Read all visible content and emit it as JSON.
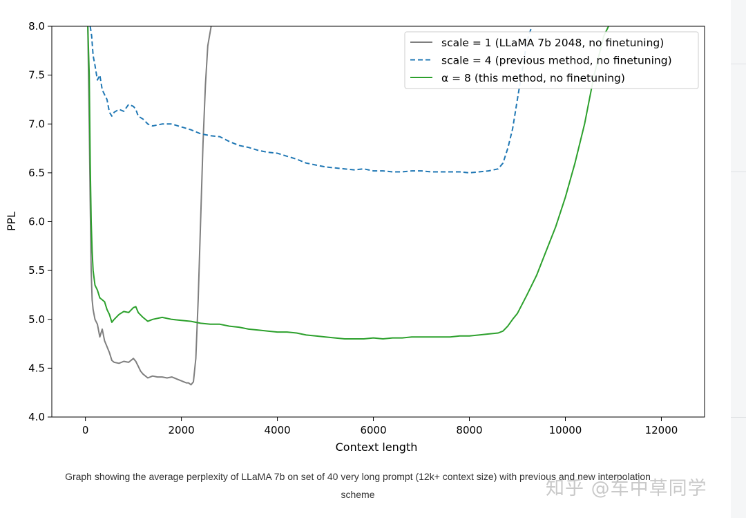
{
  "chart_data": {
    "type": "line",
    "title": "",
    "xlabel": "Context length",
    "ylabel": "PPL",
    "xlim": [
      -700,
      12900
    ],
    "ylim": [
      4.0,
      8.0
    ],
    "xticks": [
      0,
      2000,
      4000,
      6000,
      8000,
      10000,
      12000
    ],
    "yticks": [
      4.0,
      4.5,
      5.0,
      5.5,
      6.0,
      6.5,
      7.0,
      7.5,
      8.0
    ],
    "legend_position": "top-right",
    "series": [
      {
        "name": "scale = 1 (LLaMA 7b 2048, no finetuning)",
        "color": "#7f7f7f",
        "style": "solid",
        "x": [
          50,
          80,
          100,
          120,
          140,
          160,
          200,
          250,
          300,
          350,
          400,
          450,
          500,
          550,
          600,
          700,
          800,
          900,
          1000,
          1050,
          1100,
          1150,
          1200,
          1300,
          1400,
          1500,
          1600,
          1700,
          1800,
          1900,
          2000,
          2100,
          2150,
          2200,
          2250,
          2300,
          2350,
          2400,
          2450,
          2500,
          2550,
          2620
        ],
        "y": [
          8.0,
          7.0,
          6.2,
          5.5,
          5.2,
          5.1,
          5.0,
          4.95,
          4.82,
          4.9,
          4.78,
          4.72,
          4.66,
          4.58,
          4.56,
          4.55,
          4.57,
          4.56,
          4.6,
          4.57,
          4.52,
          4.47,
          4.44,
          4.4,
          4.42,
          4.41,
          4.41,
          4.4,
          4.41,
          4.39,
          4.37,
          4.35,
          4.35,
          4.33,
          4.36,
          4.6,
          5.2,
          6.0,
          6.8,
          7.4,
          7.8,
          8.0
        ]
      },
      {
        "name": "scale = 4 (previous method, no finetuning)",
        "color": "#1f77b4",
        "style": "dashed",
        "x": [
          100,
          130,
          160,
          200,
          250,
          300,
          350,
          400,
          450,
          500,
          550,
          600,
          700,
          800,
          900,
          1000,
          1050,
          1100,
          1200,
          1300,
          1400,
          1600,
          1800,
          2000,
          2200,
          2400,
          2600,
          2800,
          3000,
          3200,
          3400,
          3600,
          3800,
          4000,
          4200,
          4400,
          4600,
          4800,
          5000,
          5200,
          5400,
          5600,
          5800,
          6000,
          6200,
          6400,
          6600,
          6800,
          7000,
          7200,
          7400,
          7600,
          7800,
          8000,
          8200,
          8400,
          8600,
          8700,
          8800,
          8900,
          9000,
          9100,
          9200,
          9300
        ],
        "y": [
          8.0,
          7.9,
          7.7,
          7.6,
          7.45,
          7.5,
          7.35,
          7.3,
          7.25,
          7.12,
          7.08,
          7.12,
          7.15,
          7.13,
          7.2,
          7.18,
          7.15,
          7.08,
          7.05,
          7.0,
          6.98,
          7.0,
          7.0,
          6.97,
          6.94,
          6.9,
          6.88,
          6.87,
          6.82,
          6.78,
          6.76,
          6.73,
          6.71,
          6.7,
          6.67,
          6.64,
          6.6,
          6.58,
          6.56,
          6.55,
          6.54,
          6.53,
          6.54,
          6.52,
          6.52,
          6.51,
          6.51,
          6.52,
          6.52,
          6.51,
          6.51,
          6.51,
          6.51,
          6.5,
          6.51,
          6.52,
          6.54,
          6.6,
          6.75,
          6.95,
          7.25,
          7.55,
          7.85,
          8.0
        ]
      },
      {
        "name": "α = 8 (this method, no finetuning)",
        "color": "#2ca02c",
        "style": "solid",
        "x": [
          50,
          80,
          100,
          110,
          120,
          140,
          160,
          200,
          250,
          300,
          350,
          400,
          450,
          500,
          550,
          600,
          700,
          800,
          900,
          1000,
          1050,
          1100,
          1200,
          1300,
          1400,
          1600,
          1800,
          2000,
          2200,
          2400,
          2600,
          2800,
          3000,
          3200,
          3400,
          3600,
          3800,
          4000,
          4200,
          4400,
          4600,
          4800,
          5000,
          5200,
          5400,
          5600,
          5800,
          6000,
          6200,
          6400,
          6600,
          6800,
          7000,
          7200,
          7400,
          7600,
          7800,
          8000,
          8200,
          8400,
          8600,
          8700,
          8800,
          8900,
          9000,
          9200,
          9400,
          9600,
          9800,
          10000,
          10200,
          10400,
          10500,
          10600,
          10700,
          10800,
          10900
        ],
        "y": [
          8.0,
          7.5,
          6.6,
          6.3,
          6.0,
          5.7,
          5.5,
          5.35,
          5.3,
          5.22,
          5.2,
          5.18,
          5.1,
          5.05,
          4.97,
          5.0,
          5.05,
          5.08,
          5.07,
          5.12,
          5.13,
          5.07,
          5.02,
          4.98,
          5.0,
          5.02,
          5.0,
          4.99,
          4.98,
          4.96,
          4.95,
          4.95,
          4.93,
          4.92,
          4.9,
          4.89,
          4.88,
          4.87,
          4.87,
          4.86,
          4.84,
          4.83,
          4.82,
          4.81,
          4.8,
          4.8,
          4.8,
          4.81,
          4.8,
          4.81,
          4.81,
          4.82,
          4.82,
          4.82,
          4.82,
          4.82,
          4.83,
          4.83,
          4.84,
          4.85,
          4.86,
          4.88,
          4.93,
          5.0,
          5.06,
          5.25,
          5.45,
          5.7,
          5.95,
          6.25,
          6.6,
          7.0,
          7.25,
          7.5,
          7.7,
          7.9,
          8.0
        ]
      }
    ]
  },
  "caption": {
    "line1": "Graph showing the average perplexity of LLaMA 7b on set of 40 very long prompt (12k+ context size) with previous and new interpolation",
    "line2": "scheme"
  },
  "watermark": {
    "text": "知乎 @车中草同学"
  }
}
